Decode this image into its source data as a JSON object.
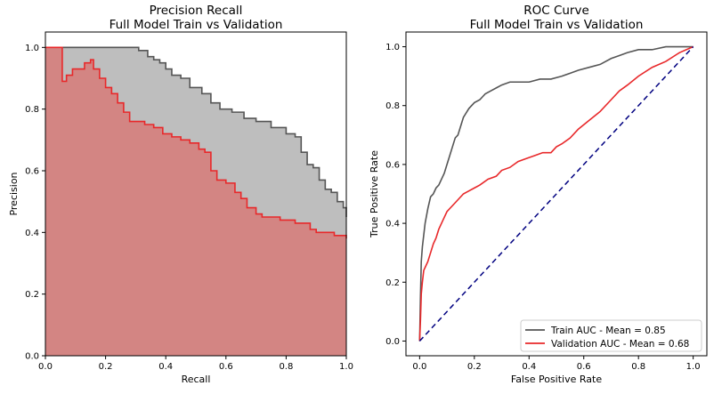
{
  "colors": {
    "train": "#555555",
    "train_fill": "#bebebe",
    "validation": "#e8282a",
    "validation_fill": "#d38583",
    "chance": "#000080"
  },
  "chart_data": [
    {
      "type": "area",
      "title": "Precision Recall\nFull Model Train vs Validation",
      "title_lines": [
        "Precision Recall",
        "Full Model Train vs Validation"
      ],
      "xlabel": "Recall",
      "ylabel": "Precision",
      "xlim": [
        0,
        1
      ],
      "ylim": [
        0,
        1.05
      ],
      "xticks": [
        "0.0",
        "0.2",
        "0.4",
        "0.6",
        "0.8",
        "1.0"
      ],
      "yticks": [
        "0.0",
        "0.2",
        "0.4",
        "0.6",
        "0.8",
        "1.0"
      ],
      "grid": false,
      "series": [
        {
          "key": "train",
          "x": [
            0,
            0.08,
            0.15,
            0.22,
            0.29,
            0.31,
            0.34,
            0.36,
            0.38,
            0.4,
            0.42,
            0.45,
            0.48,
            0.52,
            0.55,
            0.58,
            0.62,
            0.66,
            0.7,
            0.75,
            0.8,
            0.83,
            0.85,
            0.87,
            0.89,
            0.91,
            0.93,
            0.95,
            0.97,
            0.99,
            1.0
          ],
          "y": [
            1.0,
            1.0,
            1.0,
            1.0,
            1.0,
            0.99,
            0.97,
            0.96,
            0.95,
            0.93,
            0.91,
            0.9,
            0.87,
            0.85,
            0.82,
            0.8,
            0.79,
            0.77,
            0.76,
            0.74,
            0.72,
            0.71,
            0.66,
            0.62,
            0.61,
            0.57,
            0.54,
            0.53,
            0.5,
            0.48,
            0.45
          ]
        },
        {
          "key": "validation",
          "x": [
            0,
            0.055,
            0.056,
            0.07,
            0.09,
            0.11,
            0.13,
            0.15,
            0.16,
            0.18,
            0.2,
            0.22,
            0.24,
            0.26,
            0.28,
            0.3,
            0.33,
            0.36,
            0.39,
            0.42,
            0.45,
            0.48,
            0.51,
            0.53,
            0.55,
            0.57,
            0.6,
            0.63,
            0.65,
            0.67,
            0.7,
            0.72,
            0.75,
            0.78,
            0.8,
            0.83,
            0.86,
            0.88,
            0.9,
            0.93,
            0.96,
            1.0
          ],
          "y": [
            1.0,
            1.0,
            0.89,
            0.91,
            0.93,
            0.93,
            0.95,
            0.96,
            0.93,
            0.9,
            0.87,
            0.85,
            0.82,
            0.79,
            0.76,
            0.76,
            0.75,
            0.74,
            0.72,
            0.71,
            0.7,
            0.69,
            0.67,
            0.66,
            0.6,
            0.57,
            0.56,
            0.53,
            0.51,
            0.48,
            0.46,
            0.45,
            0.45,
            0.44,
            0.44,
            0.43,
            0.43,
            0.41,
            0.4,
            0.4,
            0.39,
            0.38
          ]
        }
      ]
    },
    {
      "type": "line",
      "title": "ROC Curve\nFull Model Train vs Validation",
      "title_lines": [
        "ROC Curve",
        "Full Model Train vs Validation"
      ],
      "xlabel": "False Positive Rate",
      "ylabel": "True Positive Rate",
      "xlim": [
        -0.05,
        1.05
      ],
      "ylim": [
        -0.05,
        1.05
      ],
      "xticks": [
        "0.0",
        "0.2",
        "0.4",
        "0.6",
        "0.8",
        "1.0"
      ],
      "yticks": [
        "0.0",
        "0.2",
        "0.4",
        "0.6",
        "0.8",
        "1.0"
      ],
      "grid": false,
      "legend_position": "lower-right",
      "series": [
        {
          "key": "train",
          "name": "Train AUC - Mean = 0.85",
          "x": [
            0,
            0.003,
            0.006,
            0.01,
            0.015,
            0.02,
            0.03,
            0.04,
            0.05,
            0.06,
            0.07,
            0.08,
            0.09,
            0.1,
            0.11,
            0.12,
            0.13,
            0.14,
            0.15,
            0.16,
            0.18,
            0.2,
            0.22,
            0.24,
            0.26,
            0.28,
            0.3,
            0.33,
            0.36,
            0.4,
            0.44,
            0.48,
            0.52,
            0.55,
            0.58,
            0.62,
            0.66,
            0.7,
            0.73,
            0.76,
            0.8,
            0.85,
            0.9,
            0.95,
            1.0
          ],
          "y": [
            0,
            0.15,
            0.27,
            0.32,
            0.36,
            0.4,
            0.45,
            0.49,
            0.5,
            0.52,
            0.53,
            0.55,
            0.57,
            0.6,
            0.63,
            0.66,
            0.69,
            0.7,
            0.73,
            0.76,
            0.79,
            0.81,
            0.82,
            0.84,
            0.85,
            0.86,
            0.87,
            0.88,
            0.88,
            0.88,
            0.89,
            0.89,
            0.9,
            0.91,
            0.92,
            0.93,
            0.94,
            0.96,
            0.97,
            0.98,
            0.99,
            0.99,
            1.0,
            1.0,
            1.0
          ]
        },
        {
          "key": "validation",
          "name": "Validation AUC - Mean = 0.68",
          "x": [
            0,
            0.003,
            0.006,
            0.01,
            0.015,
            0.02,
            0.03,
            0.04,
            0.05,
            0.06,
            0.07,
            0.08,
            0.09,
            0.1,
            0.12,
            0.14,
            0.16,
            0.18,
            0.2,
            0.22,
            0.25,
            0.28,
            0.3,
            0.33,
            0.36,
            0.39,
            0.42,
            0.45,
            0.48,
            0.5,
            0.52,
            0.55,
            0.58,
            0.62,
            0.66,
            0.7,
            0.73,
            0.76,
            0.8,
            0.85,
            0.9,
            0.95,
            1.0
          ],
          "y": [
            0,
            0.07,
            0.16,
            0.2,
            0.24,
            0.25,
            0.27,
            0.3,
            0.33,
            0.35,
            0.38,
            0.4,
            0.42,
            0.44,
            0.46,
            0.48,
            0.5,
            0.51,
            0.52,
            0.53,
            0.55,
            0.56,
            0.58,
            0.59,
            0.61,
            0.62,
            0.63,
            0.64,
            0.64,
            0.66,
            0.67,
            0.69,
            0.72,
            0.75,
            0.78,
            0.82,
            0.85,
            0.87,
            0.9,
            0.93,
            0.95,
            0.98,
            1.0
          ]
        },
        {
          "key": "chance",
          "x": [
            0,
            1
          ],
          "y": [
            0,
            1
          ]
        }
      ]
    }
  ]
}
